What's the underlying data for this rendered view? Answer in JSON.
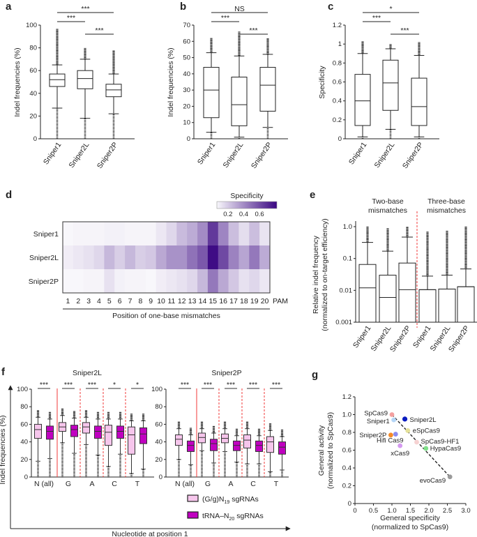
{
  "box_format": [
    "whisker_low",
    "q1",
    "median",
    "q3",
    "whisker_high"
  ],
  "chart_data": [
    {
      "panel": "a",
      "type": "box",
      "ylabel": "Indel frequencies (%)",
      "ylim": [
        0,
        100
      ],
      "yticks": [
        0,
        20,
        40,
        60,
        80,
        100
      ],
      "categories": [
        "Sniper1",
        "Sniper2L",
        "Sniper2P"
      ],
      "boxes": [
        [
          27,
          46,
          52,
          57,
          65
        ],
        [
          18,
          44,
          53,
          60,
          70
        ],
        [
          22,
          37,
          43,
          48,
          57
        ]
      ],
      "outliers": [
        [
          0,
          97
        ],
        [
          0,
          80
        ],
        [
          0,
          78
        ]
      ],
      "significance": [
        {
          "pair": [
            0,
            2
          ],
          "label": "***"
        },
        {
          "pair": [
            0,
            1
          ],
          "label": "***"
        },
        {
          "pair": [
            1,
            2
          ],
          "label": "***"
        }
      ]
    },
    {
      "panel": "b",
      "type": "box",
      "ylabel": "Indel frequencies (%)",
      "ylim": [
        0,
        70
      ],
      "yticks": [
        0,
        10,
        20,
        30,
        40,
        50,
        60,
        70
      ],
      "categories": [
        "Sniper1",
        "Sniper2L",
        "Sniper2P"
      ],
      "boxes": [
        [
          4,
          13,
          30,
          44,
          53
        ],
        [
          1,
          8,
          21,
          38,
          51
        ],
        [
          7,
          17,
          33,
          44,
          52
        ]
      ],
      "outliers": [
        [
          0,
          62
        ],
        [
          0,
          66
        ],
        [
          0,
          62
        ]
      ],
      "significance": [
        {
          "pair": [
            0,
            2
          ],
          "label": "NS"
        },
        {
          "pair": [
            0,
            1
          ],
          "label": "***"
        },
        {
          "pair": [
            1,
            2
          ],
          "label": "***"
        }
      ]
    },
    {
      "panel": "c",
      "type": "box",
      "ylabel": "Specificity",
      "ylim": [
        0,
        1.2
      ],
      "yticks": [
        0,
        0.2,
        0.4,
        0.6,
        0.8,
        1.0,
        1.2
      ],
      "categories": [
        "Sniper1",
        "Sniper2L",
        "Sniper2P"
      ],
      "boxes": [
        [
          0.02,
          0.14,
          0.4,
          0.68,
          0.9
        ],
        [
          0.1,
          0.3,
          0.59,
          0.83,
          0.95
        ],
        [
          0.02,
          0.14,
          0.34,
          0.64,
          0.88
        ]
      ],
      "outliers": [
        [
          0,
          1.03
        ],
        [
          0,
          1.0
        ],
        [
          0,
          1.02
        ]
      ],
      "significance": [
        {
          "pair": [
            0,
            2
          ],
          "label": "*"
        },
        {
          "pair": [
            0,
            1
          ],
          "label": "***"
        },
        {
          "pair": [
            1,
            2
          ],
          "label": "***"
        }
      ]
    },
    {
      "panel": "d",
      "type": "heatmap",
      "colorbar_title": "Specificity",
      "colorbar_ticks": [
        0.2,
        0.4,
        0.6
      ],
      "color_range": [
        0.06,
        0.82
      ],
      "colors": {
        "low": "#f8f7fb",
        "high": "#3a0682"
      },
      "rows": [
        "Sniper1",
        "Sniper2L",
        "Sniper2P"
      ],
      "columns": [
        "1",
        "2",
        "3",
        "4",
        "5",
        "6",
        "7",
        "8",
        "9",
        "10",
        "11",
        "12",
        "13",
        "14",
        "15",
        "16",
        "17",
        "18",
        "19",
        "20"
      ],
      "pam_label": "PAM",
      "xlabel": "Position of one-base mismatches",
      "values": [
        [
          0.06,
          0.07,
          0.07,
          0.07,
          0.08,
          0.08,
          0.07,
          0.07,
          0.07,
          0.11,
          0.16,
          0.25,
          0.3,
          0.4,
          0.66,
          0.42,
          0.24,
          0.14,
          0.24,
          0.12
        ],
        [
          0.09,
          0.11,
          0.13,
          0.16,
          0.26,
          0.19,
          0.26,
          0.19,
          0.21,
          0.31,
          0.38,
          0.38,
          0.48,
          0.56,
          0.8,
          0.61,
          0.43,
          0.32,
          0.46,
          0.3
        ],
        [
          0.05,
          0.06,
          0.07,
          0.07,
          0.13,
          0.08,
          0.07,
          0.07,
          0.06,
          0.09,
          0.11,
          0.13,
          0.16,
          0.26,
          0.46,
          0.31,
          0.21,
          0.13,
          0.16,
          0.11
        ]
      ]
    },
    {
      "panel": "e",
      "type": "box",
      "ylabel": "Relative indel frequency",
      "ylabel2": "(normalized to on-target efficiency)",
      "yscale": "log",
      "ylim": [
        0.001,
        1.0
      ],
      "yticks": [
        0.001,
        0.01,
        0.1,
        1.0
      ],
      "ytick_labels": [
        "0.001",
        "0.01",
        "0.1",
        "1.0"
      ],
      "group_titles": [
        [
          "Two-base",
          "mismatches"
        ],
        [
          "Three-base",
          "mismatches"
        ]
      ],
      "categories": [
        "Sniper1",
        "Sniper2L",
        "Sniper2P",
        "Sniper1",
        "Sniper2L",
        "Sniper2P"
      ],
      "boxes": [
        [
          0.001,
          0.001,
          0.012,
          0.065,
          0.32
        ],
        [
          0.001,
          0.001,
          0.006,
          0.03,
          0.17
        ],
        [
          0.001,
          0.001,
          0.0105,
          0.072,
          0.47
        ],
        [
          0.001,
          0.001,
          0.0105,
          0.0105,
          0.028
        ],
        [
          0.001,
          0.001,
          0.011,
          0.011,
          0.03
        ],
        [
          0.001,
          0.001,
          0.013,
          0.013,
          0.047
        ]
      ],
      "outliers": [
        [
          null,
          1.0
        ],
        [
          null,
          0.9
        ],
        [
          null,
          1.0
        ],
        [
          null,
          0.7
        ],
        [
          null,
          0.75
        ],
        [
          null,
          1.0
        ]
      ]
    },
    {
      "panel": "f",
      "type": "box",
      "ylabel": "Indel frequencies (%)",
      "xlabel": "Nucleotide at position 1",
      "ylim": [
        0,
        100
      ],
      "yticks": [
        0,
        20,
        40,
        60,
        80,
        100
      ],
      "legend": [
        {
          "pre": "(G/g)N",
          "sub": "19",
          "post": " sgRNAs",
          "color": "#f6c6ec"
        },
        {
          "pre": "tRNA–N",
          "sub": "20",
          "post": " sgRNAs",
          "color": "#c000c0"
        }
      ],
      "subplots": [
        {
          "title": "Sniper2L",
          "groups": [
            {
              "category": "N (all)",
              "sig": "***",
              "boxes": [
                [
                  18,
                  44,
                  54,
                  60,
                  68
                ],
                [
                  21,
                  43,
                  52,
                  58,
                  66
                ]
              ]
            },
            {
              "category": "G",
              "sig": "***",
              "boxes": [
                [
                  39,
                  52,
                  57,
                  62,
                  70
                ],
                [
                  27,
                  46,
                  54,
                  59,
                  67
                ]
              ]
            },
            {
              "category": "A",
              "sig": "***",
              "boxes": [
                [
                  37,
                  50,
                  57,
                  62,
                  68
                ],
                [
                  25,
                  44,
                  52,
                  58,
                  66
                ]
              ]
            },
            {
              "category": "C",
              "sig": "*",
              "boxes": [
                [
                  12,
                  36,
                  51,
                  59,
                  66
                ],
                [
                  26,
                  44,
                  52,
                  58,
                  66
                ]
              ]
            },
            {
              "category": "T",
              "sig": "*",
              "boxes": [
                [
                  4,
                  26,
                  48,
                  57,
                  64
                ],
                [
                  9,
                  38,
                  49,
                  56,
                  64
                ]
              ]
            }
          ]
        },
        {
          "title": "Sniper2P",
          "groups": [
            {
              "category": "N (all)",
              "sig": "***",
              "boxes": [
                [
                  20,
                  36,
                  43,
                  48,
                  55
                ],
                [
                  14,
                  29,
                  36,
                  41,
                  48
                ]
              ]
            },
            {
              "category": "G",
              "sig": "***",
              "boxes": [
                [
                  30,
                  39,
                  45,
                  50,
                  55
                ],
                [
                  16,
                  30,
                  38,
                  43,
                  50
                ]
              ]
            },
            {
              "category": "A",
              "sig": "***",
              "boxes": [
                [
                  29,
                  39,
                  44,
                  49,
                  55
                ],
                [
                  17,
                  30,
                  36,
                  41,
                  47
                ]
              ]
            },
            {
              "category": "C",
              "sig": "***",
              "boxes": [
                [
                  15,
                  33,
                  42,
                  48,
                  55
                ],
                [
                  15,
                  29,
                  36,
                  41,
                  47
                ]
              ]
            },
            {
              "category": "T",
              "sig": "***",
              "boxes": [
                [
                  6,
                  28,
                  40,
                  46,
                  53
                ],
                [
                  8,
                  26,
                  34,
                  40,
                  46
                ]
              ]
            }
          ]
        }
      ]
    },
    {
      "panel": "g",
      "type": "scatter",
      "xlabel": "General specificity",
      "xlabel2": "(normalized to SpCas9)",
      "ylabel": "General activity",
      "ylabel2": "(normalized to SpCas9)",
      "xlim": [
        0,
        3.0
      ],
      "ylim": [
        0,
        1.2
      ],
      "xticks": [
        "0",
        "0.5",
        "1.0",
        "1.5",
        "2.0",
        "2.5",
        "3.0"
      ],
      "yticks": [
        "0",
        "0.2",
        "0.4",
        "0.6",
        "0.8",
        "1.0",
        "1.2"
      ],
      "trendline": {
        "from": [
          1.0,
          1.0
        ],
        "to": [
          2.57,
          0.3
        ],
        "style": "dashed"
      },
      "points": [
        {
          "name": "SpCas9",
          "x": 1.0,
          "y": 1.0,
          "color": "#f4a0a0"
        },
        {
          "name": "Sniper1",
          "x": 1.05,
          "y": 0.94,
          "color": "#b5d6f7"
        },
        {
          "name": "Sniper2L",
          "x": 1.35,
          "y": 0.95,
          "color": "#0a1cc0"
        },
        {
          "name": "eSpCas9",
          "x": 1.43,
          "y": 0.82,
          "color": "#e4e19a"
        },
        {
          "name": "Sniper2P",
          "x": 0.97,
          "y": 0.77,
          "color": "#f58a28"
        },
        {
          "name": "Hifi Cas9",
          "x": 1.1,
          "y": 0.78,
          "color": "#8c8cf0"
        },
        {
          "name": "SpCas9-HF1",
          "x": 1.67,
          "y": 0.69,
          "color": "#f6d2d2"
        },
        {
          "name": "HypaCas9",
          "x": 1.92,
          "y": 0.62,
          "color": "#80e08a"
        },
        {
          "name": "xCas9",
          "x": 1.22,
          "y": 0.65,
          "color": "#d59af0"
        },
        {
          "name": "evoCas9",
          "x": 2.57,
          "y": 0.3,
          "color": "#9a9a9a"
        }
      ]
    }
  ],
  "colors": {
    "red_divider": "#f03a3a",
    "pink_box": "#f6c6ec",
    "purple_box": "#c000c0"
  }
}
